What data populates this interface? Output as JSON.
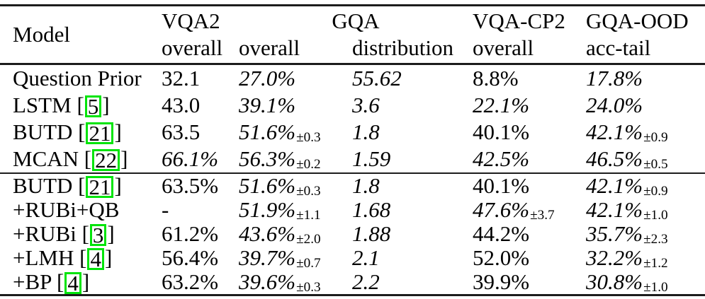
{
  "colors": {
    "citation_box_green": "#00e40a",
    "rule": "#1c1c1c",
    "text": "#000000",
    "background": "#ffffff"
  },
  "table": {
    "header": {
      "model_label": "Model",
      "groups": [
        {
          "label": "VQA2",
          "sublabels": [
            "overall"
          ]
        },
        {
          "label": "GQA",
          "sublabels": [
            "overall",
            "distribution"
          ]
        },
        {
          "label": "VQA-CP2",
          "sublabels": [
            "overall"
          ]
        },
        {
          "label": "GQA-OOD",
          "sublabels": [
            "acc-tail"
          ]
        }
      ]
    },
    "groups": [
      {
        "rows": [
          {
            "model": "Question Prior",
            "citation": null,
            "values": [
              {
                "text": "32.1",
                "italic": false
              },
              {
                "text": "27.0%",
                "italic": true
              },
              {
                "text": "55.62",
                "italic": true
              },
              {
                "text": "8.8%",
                "italic": false
              },
              {
                "text": "17.8%",
                "italic": true
              }
            ]
          },
          {
            "model": "LSTM",
            "citation": "5",
            "values": [
              {
                "text": "43.0",
                "italic": false
              },
              {
                "text": "39.1%",
                "italic": true
              },
              {
                "text": "3.6",
                "italic": true
              },
              {
                "text": "22.1%",
                "italic": true
              },
              {
                "text": "24.0%",
                "italic": true
              }
            ]
          },
          {
            "model": "BUTD",
            "citation": "21",
            "values": [
              {
                "text": "63.5",
                "italic": false
              },
              {
                "text": "51.6%",
                "italic": true,
                "pm": "±0.3"
              },
              {
                "text": "1.8",
                "italic": true
              },
              {
                "text": "40.1%",
                "italic": false
              },
              {
                "text": "42.1%",
                "italic": true,
                "pm": "±0.9"
              }
            ]
          },
          {
            "model": "MCAN",
            "citation": "22",
            "values": [
              {
                "text": "66.1%",
                "italic": true
              },
              {
                "text": "56.3%",
                "italic": true,
                "pm": "±0.2"
              },
              {
                "text": "1.59",
                "italic": true
              },
              {
                "text": "42.5%",
                "italic": true
              },
              {
                "text": "46.5%",
                "italic": true,
                "pm": "±0.5"
              }
            ]
          }
        ]
      },
      {
        "rows": [
          {
            "model": "BUTD",
            "citation": "21",
            "values": [
              {
                "text": "63.5%",
                "italic": false
              },
              {
                "text": "51.6%",
                "italic": true,
                "pm": "±0.3"
              },
              {
                "text": "1.8",
                "italic": true
              },
              {
                "text": "40.1%",
                "italic": false
              },
              {
                "text": "42.1%",
                "italic": true,
                "pm": "±0.9"
              }
            ]
          },
          {
            "model": "+RUBi+QB",
            "citation": null,
            "values": [
              {
                "text": "-",
                "italic": false
              },
              {
                "text": "51.9%",
                "italic": true,
                "pm": "±1.1"
              },
              {
                "text": "1.68",
                "italic": true
              },
              {
                "text": "47.6%",
                "italic": true,
                "pm": "±3.7"
              },
              {
                "text": "42.1%",
                "italic": true,
                "pm": "±1.0"
              }
            ]
          },
          {
            "model": "+RUBi",
            "citation": "3",
            "values": [
              {
                "text": "61.2%",
                "italic": false
              },
              {
                "text": "43.6%",
                "italic": true,
                "pm": "±2.0"
              },
              {
                "text": "1.88",
                "italic": true
              },
              {
                "text": "44.2%",
                "italic": false
              },
              {
                "text": "35.7%",
                "italic": true,
                "pm": "±2.3"
              }
            ]
          },
          {
            "model": "+LMH",
            "citation": "4",
            "values": [
              {
                "text": "56.4%",
                "italic": false
              },
              {
                "text": "39.7%",
                "italic": true,
                "pm": "±0.7"
              },
              {
                "text": "2.1",
                "italic": true
              },
              {
                "text": "52.0%",
                "italic": false
              },
              {
                "text": "32.2%",
                "italic": true,
                "pm": "±1.2"
              }
            ]
          },
          {
            "model": "+BP",
            "citation": "4",
            "values": [
              {
                "text": "63.2%",
                "italic": false
              },
              {
                "text": "39.6%",
                "italic": true,
                "pm": "±0.3"
              },
              {
                "text": "2.2",
                "italic": true
              },
              {
                "text": "39.9%",
                "italic": false
              },
              {
                "text": "30.8%",
                "italic": true,
                "pm": "±1.0"
              }
            ]
          }
        ]
      }
    ]
  }
}
